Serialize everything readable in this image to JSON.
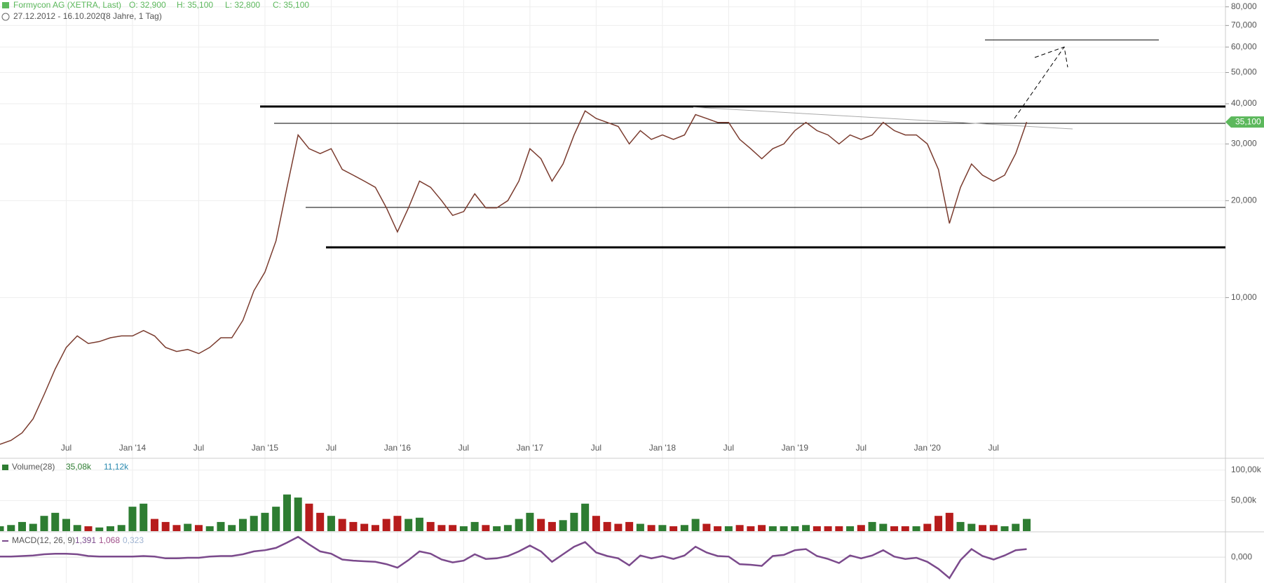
{
  "chart_data": [
    {
      "type": "line",
      "log_scale": true,
      "grid": true,
      "title": "Formycon AG (XETRA, Last)",
      "ohlc": [
        "O: 32,900",
        "H: 35,100",
        "L: 32,800",
        "C: 35,100"
      ],
      "range": "27.12.2012 - 16.10.2020",
      "period": "(8 Jahre, 1 Tag)",
      "color": "#7a3b2e",
      "last": {
        "value": 35.1,
        "label": "35,100"
      },
      "last_color": "#5cb85c",
      "xlim": [
        "2013-01",
        "2022-04"
      ],
      "ylim": [
        3.2,
        84
      ],
      "xticks": [
        {
          "value": "2013-07",
          "label": "Jul"
        },
        {
          "value": "2014-01",
          "label": "Jan '14"
        },
        {
          "value": "2014-07",
          "label": "Jul"
        },
        {
          "value": "2015-01",
          "label": "Jan '15"
        },
        {
          "value": "2015-07",
          "label": "Jul"
        },
        {
          "value": "2016-01",
          "label": "Jan '16"
        },
        {
          "value": "2016-07",
          "label": "Jul"
        },
        {
          "value": "2017-01",
          "label": "Jan '17"
        },
        {
          "value": "2017-07",
          "label": "Jul"
        },
        {
          "value": "2018-01",
          "label": "Jan '18"
        },
        {
          "value": "2018-07",
          "label": "Jul"
        },
        {
          "value": "2019-01",
          "label": "Jan '19"
        },
        {
          "value": "2019-07",
          "label": "Jul"
        },
        {
          "value": "2020-01",
          "label": "Jan '20"
        },
        {
          "value": "2020-07",
          "label": "Jul"
        }
      ],
      "yticks": [
        {
          "value": 80,
          "label": "80,000"
        },
        {
          "value": 70,
          "label": "70,000"
        },
        {
          "value": 60,
          "label": "60,000"
        },
        {
          "value": 50,
          "label": "50,000"
        },
        {
          "value": 40,
          "label": "40,000"
        },
        {
          "value": 30,
          "label": "30,000"
        },
        {
          "value": 20,
          "label": "20,000"
        },
        {
          "value": 10,
          "label": "10,000"
        }
      ],
      "x": [
        "2013-01",
        "2013-02",
        "2013-03",
        "2013-04",
        "2013-05",
        "2013-06",
        "2013-07",
        "2013-08",
        "2013-09",
        "2013-10",
        "2013-11",
        "2013-12",
        "2014-01",
        "2014-02",
        "2014-03",
        "2014-04",
        "2014-05",
        "2014-06",
        "2014-07",
        "2014-08",
        "2014-09",
        "2014-10",
        "2014-11",
        "2014-12",
        "2015-01",
        "2015-02",
        "2015-03",
        "2015-04",
        "2015-05",
        "2015-06",
        "2015-07",
        "2015-08",
        "2015-09",
        "2015-10",
        "2015-11",
        "2015-12",
        "2016-01",
        "2016-02",
        "2016-03",
        "2016-04",
        "2016-05",
        "2016-06",
        "2016-07",
        "2016-08",
        "2016-09",
        "2016-10",
        "2016-11",
        "2016-12",
        "2017-01",
        "2017-02",
        "2017-03",
        "2017-04",
        "2017-05",
        "2017-06",
        "2017-07",
        "2017-08",
        "2017-09",
        "2017-10",
        "2017-11",
        "2017-12",
        "2018-01",
        "2018-02",
        "2018-03",
        "2018-04",
        "2018-05",
        "2018-06",
        "2018-07",
        "2018-08",
        "2018-09",
        "2018-10",
        "2018-11",
        "2018-12",
        "2019-01",
        "2019-02",
        "2019-03",
        "2019-04",
        "2019-05",
        "2019-06",
        "2019-07",
        "2019-08",
        "2019-09",
        "2019-10",
        "2019-11",
        "2019-12",
        "2020-01",
        "2020-02",
        "2020-03",
        "2020-04",
        "2020-05",
        "2020-06",
        "2020-07",
        "2020-08",
        "2020-09",
        "2020-10"
      ],
      "values": [
        3.5,
        3.6,
        3.8,
        4.2,
        5.0,
        6.0,
        7.0,
        7.6,
        7.2,
        7.3,
        7.5,
        7.6,
        7.6,
        7.9,
        7.6,
        7.0,
        6.8,
        6.9,
        6.7,
        7.0,
        7.5,
        7.5,
        8.5,
        10.5,
        12,
        15,
        22,
        32,
        29,
        28,
        29,
        25,
        24,
        23,
        22,
        19,
        16,
        19,
        23,
        22,
        20,
        18,
        18.5,
        21,
        19,
        19,
        20,
        23,
        29,
        27,
        23,
        26,
        32,
        38,
        36,
        35,
        34,
        30,
        33,
        31,
        32,
        31,
        32,
        37,
        36,
        35,
        35,
        31,
        29,
        27,
        29,
        30,
        33,
        35,
        33,
        32,
        30,
        32,
        31,
        32,
        35,
        33,
        32,
        32,
        30,
        25,
        17,
        22,
        26,
        24,
        23,
        24,
        28,
        35.1
      ]
    },
    {
      "type": "bar",
      "title": "Volume(28)",
      "legend_values": [
        "35,08k",
        "11,12k"
      ],
      "up_color": "#2e7d32",
      "down_color": "#b71c1c",
      "ylim": [
        0,
        117
      ],
      "yticks": [
        {
          "value": 100,
          "label": "100,00k"
        },
        {
          "value": 50,
          "label": "50,00k"
        }
      ],
      "values": [
        8,
        10,
        15,
        12,
        25,
        30,
        20,
        10,
        8,
        6,
        8,
        10,
        40,
        45,
        20,
        15,
        10,
        12,
        10,
        8,
        15,
        10,
        20,
        25,
        30,
        40,
        60,
        55,
        45,
        30,
        25,
        20,
        15,
        12,
        10,
        20,
        25,
        20,
        22,
        15,
        10,
        10,
        8,
        15,
        10,
        8,
        10,
        20,
        30,
        20,
        15,
        18,
        30,
        45,
        25,
        15,
        12,
        15,
        12,
        10,
        10,
        8,
        10,
        20,
        12,
        8,
        8,
        10,
        8,
        10,
        8,
        8,
        8,
        10,
        8,
        8,
        8,
        8,
        10,
        15,
        12,
        8,
        8,
        8,
        12,
        25,
        30,
        15,
        12,
        10,
        10,
        8,
        12,
        20
      ]
    },
    {
      "type": "line",
      "title": "MACD(12, 26, 9)",
      "legend_values": [
        "1,391",
        "1,068",
        "0,323"
      ],
      "color": "#7b4a8c",
      "ylim": [
        -4.2,
        4.0
      ],
      "yticks": [
        {
          "value": 0,
          "label": "0,000"
        }
      ],
      "values": [
        0.1,
        0.1,
        0.2,
        0.3,
        0.5,
        0.6,
        0.6,
        0.5,
        0.2,
        0.1,
        0.1,
        0.1,
        0.1,
        0.2,
        0.1,
        -0.2,
        -0.2,
        -0.1,
        -0.1,
        0.1,
        0.2,
        0.2,
        0.5,
        1.0,
        1.2,
        1.6,
        2.5,
        3.5,
        2.2,
        1.0,
        0.6,
        -0.4,
        -0.6,
        -0.7,
        -0.8,
        -1.2,
        -1.8,
        -0.5,
        1.0,
        0.6,
        -0.4,
        -0.9,
        -0.6,
        0.5,
        -0.3,
        -0.2,
        0.2,
        1.0,
        2.0,
        1.0,
        -0.8,
        0.5,
        1.8,
        2.6,
        0.8,
        0.2,
        -0.2,
        -1.4,
        0.3,
        -0.2,
        0.2,
        -0.3,
        0.3,
        1.8,
        0.8,
        0.2,
        0.1,
        -1.2,
        -1.3,
        -1.5,
        0.2,
        0.4,
        1.2,
        1.4,
        0.2,
        -0.3,
        -1.0,
        0.3,
        -0.2,
        0.3,
        1.2,
        0.1,
        -0.3,
        -0.1,
        -0.8,
        -2.0,
        -3.6,
        -0.5,
        1.4,
        0.2,
        -0.4,
        0.3,
        1.2,
        1.4
      ]
    }
  ]
}
